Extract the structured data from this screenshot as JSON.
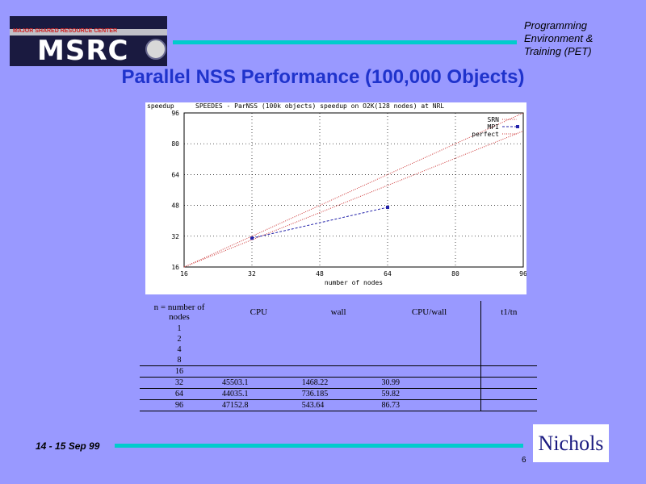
{
  "header": {
    "logo_text": "MSRC",
    "logo_subtitle": "MAJOR SHARED RESOURCE CENTER",
    "pet_lines": [
      "Programming",
      "Environment &",
      "Training (PET)"
    ]
  },
  "title": "Parallel NSS Performance  (100,000 Objects)",
  "chart_data": {
    "type": "line",
    "title": "SPEEDES - ParNSS (100k objects) speedup on O2K(128 nodes) at NRL",
    "xlabel": "number of nodes",
    "ylabel": "speedup",
    "xlim": [
      16,
      96
    ],
    "ylim": [
      16,
      96
    ],
    "xticks": [
      16,
      32,
      48,
      64,
      80,
      96
    ],
    "yticks": [
      16,
      32,
      48,
      64,
      80,
      96
    ],
    "grid": true,
    "legend_position": "top-right",
    "series": [
      {
        "name": "SRN",
        "x": [
          16,
          96
        ],
        "y": [
          16,
          86.6
        ],
        "color": "#cc3333",
        "style": "dotted"
      },
      {
        "name": "MPI",
        "x": [
          32,
          64
        ],
        "y": [
          30.99,
          47.0
        ],
        "color": "#2222aa",
        "style": "dashed-points"
      },
      {
        "name": "perfect",
        "x": [
          16,
          96
        ],
        "y": [
          16,
          96
        ],
        "color": "#cc3333",
        "style": "dotted"
      }
    ]
  },
  "table": {
    "headers": [
      "n = number of nodes",
      "CPU",
      "wall",
      "CPU/wall",
      "t1/tn"
    ],
    "rows": [
      [
        "1",
        "",
        "",
        "",
        ""
      ],
      [
        "2",
        "",
        "",
        "",
        ""
      ],
      [
        "4",
        "",
        "",
        "",
        ""
      ],
      [
        "8",
        "",
        "",
        "",
        ""
      ],
      [
        "16",
        "",
        "",
        "",
        ""
      ],
      [
        "32",
        "45503.1",
        "1468.22",
        "30.99",
        ""
      ],
      [
        "64",
        "44035.1",
        "736.185",
        "59.82",
        ""
      ],
      [
        "96",
        "47152.8",
        "543.64",
        "86.73",
        ""
      ]
    ]
  },
  "footer": {
    "date": "14 - 15 Sep 99",
    "logo_text": "Nichols",
    "page_number": "6"
  },
  "colors": {
    "background": "#9999ff",
    "accent_rule": "#00cccc",
    "title": "#1f33cc"
  }
}
